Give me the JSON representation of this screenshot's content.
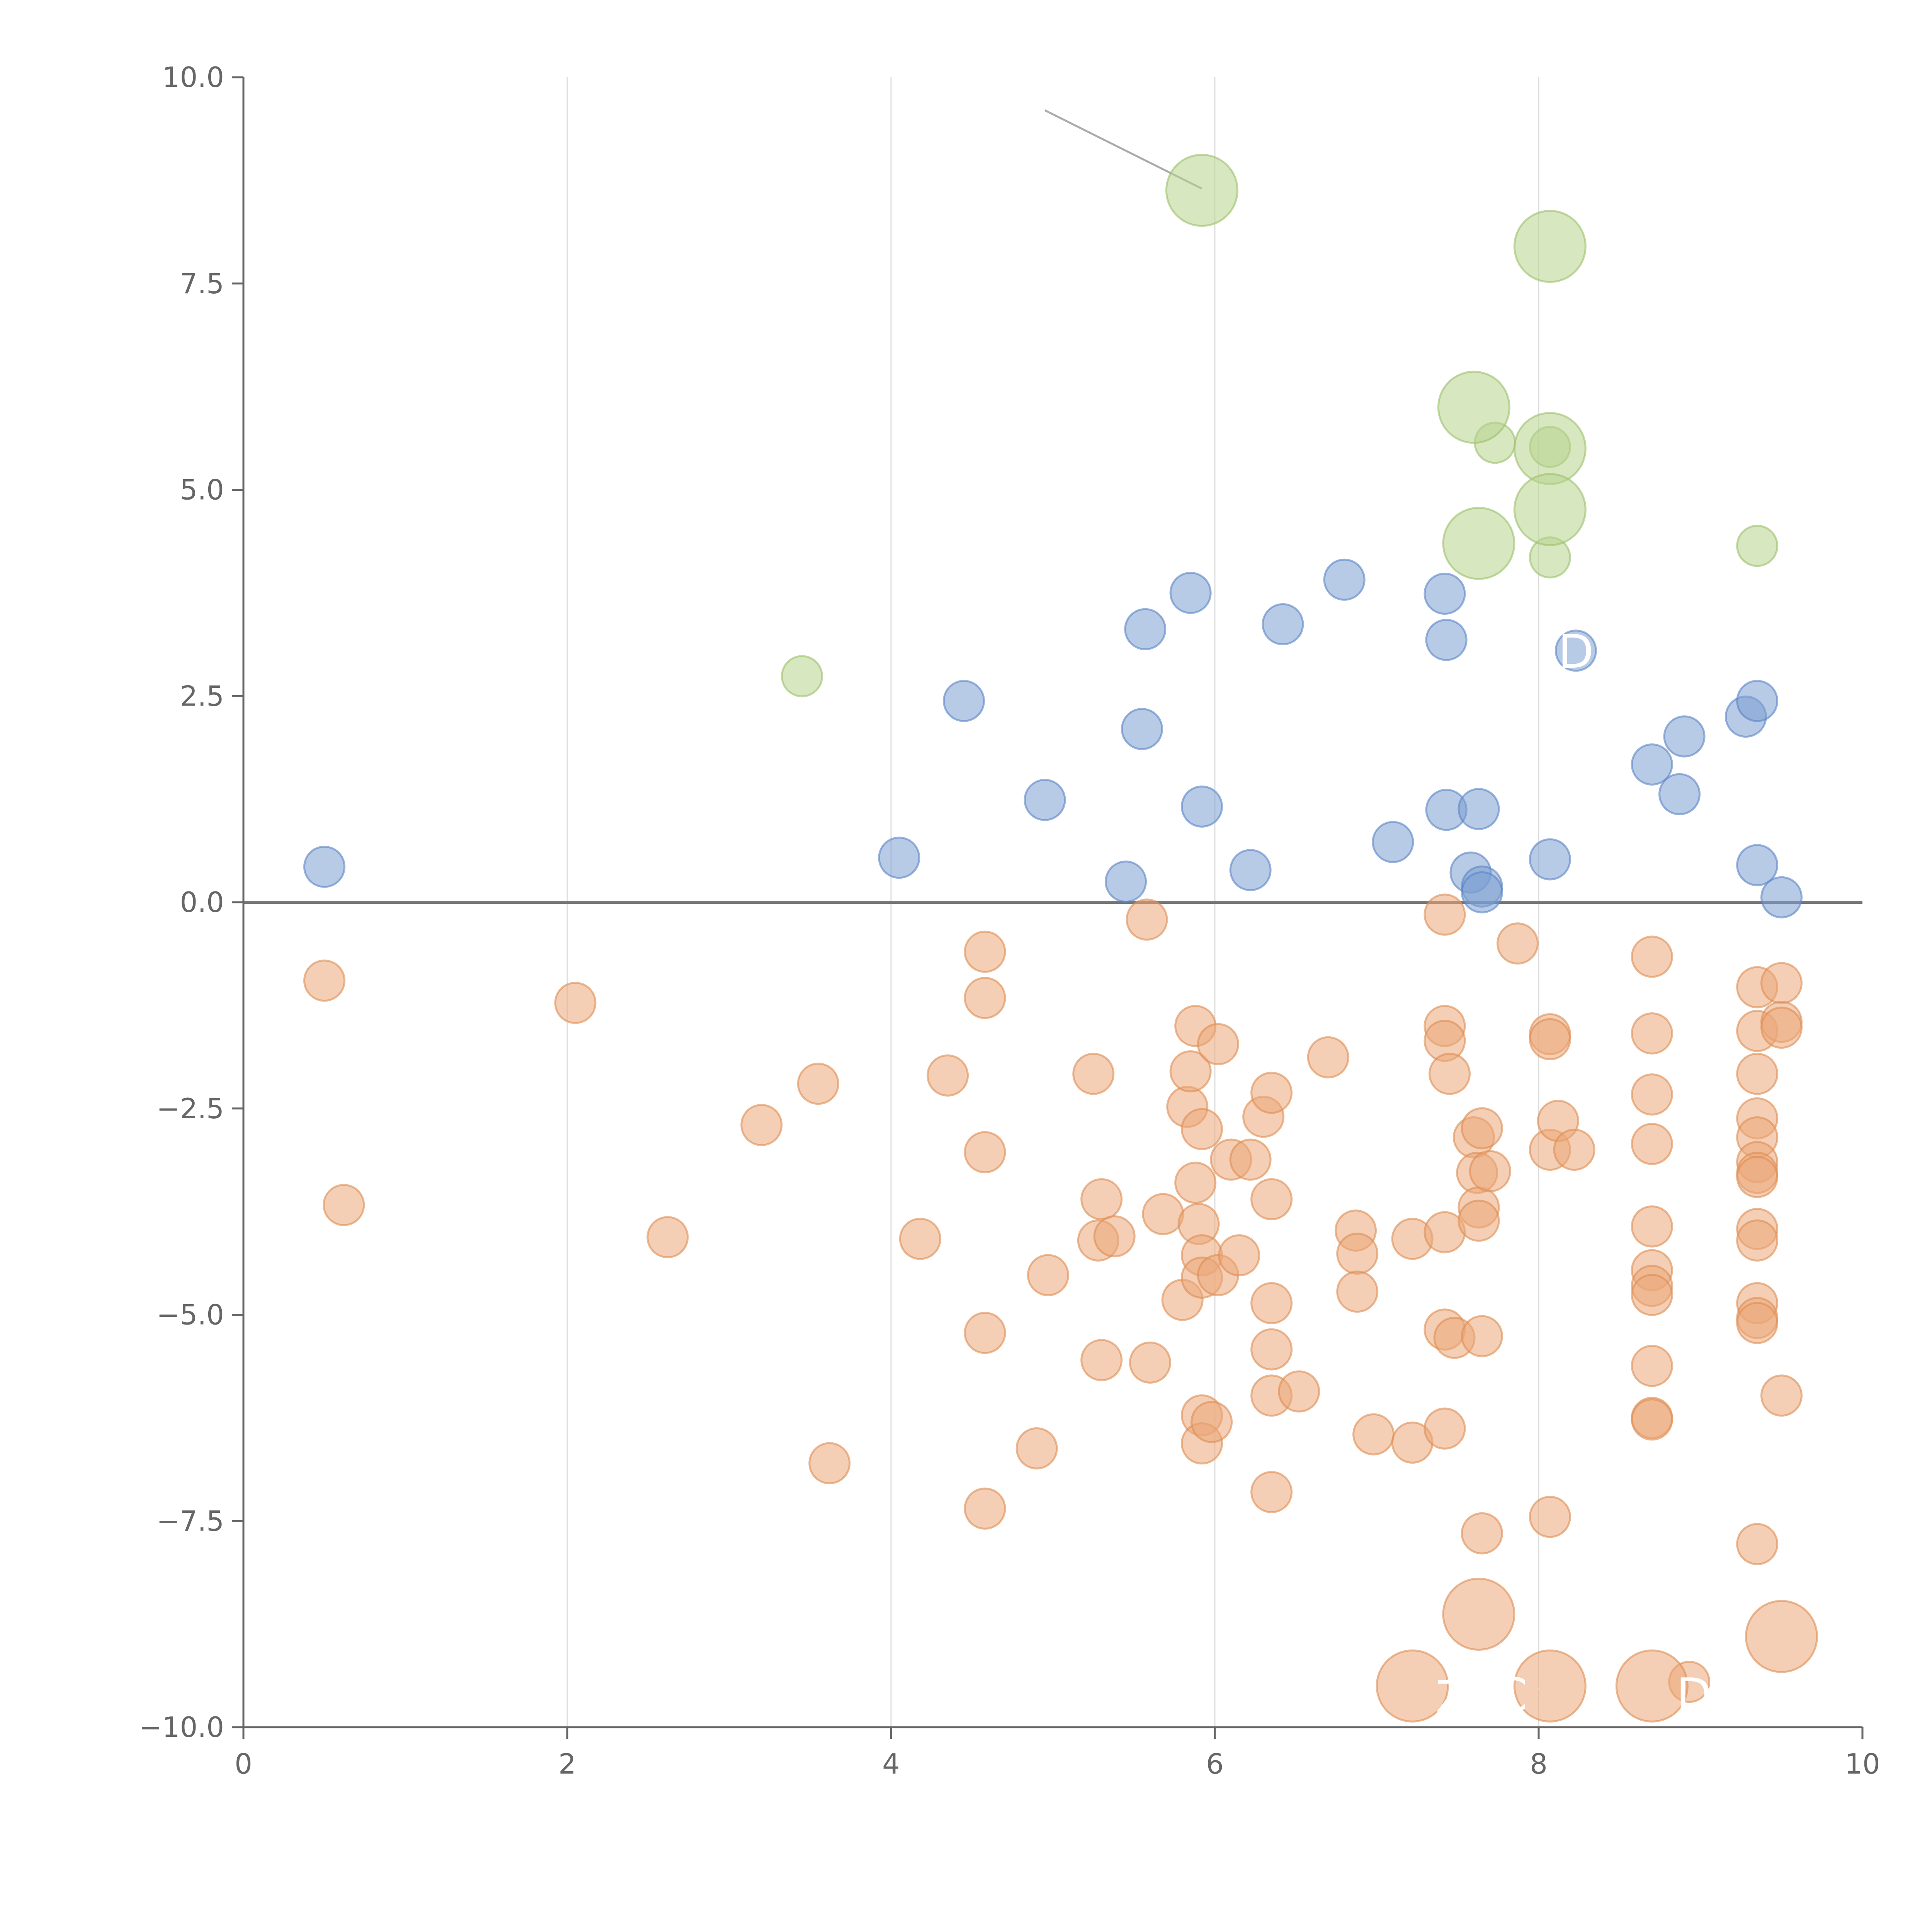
{
  "chart_data": {
    "type": "scatter",
    "title": "",
    "xlabel": "",
    "ylabel": "",
    "xlim": [
      0,
      10
    ],
    "ylim": [
      -10,
      10
    ],
    "x_ticks": [
      0,
      2,
      4,
      6,
      8,
      10
    ],
    "x_tick_labels": [
      "0",
      "2",
      "4",
      "6",
      "8",
      "10"
    ],
    "y_ticks": [
      -10,
      -7.5,
      -5,
      -2.5,
      0,
      2.5,
      5,
      7.5,
      10
    ],
    "y_tick_labels": [
      "−10.0",
      "−7.5",
      "−5.0",
      "−2.5",
      "0.0",
      "2.5",
      "5.0",
      "7.5",
      "10.0"
    ],
    "vertical_gridlines": [
      2,
      4,
      6,
      8
    ],
    "reference_line_y": 0,
    "colors": {
      "blue": "#7b9fd2",
      "blue_stroke": "#5a84c6",
      "orange": "#eba878",
      "orange_stroke": "#de8c52",
      "green": "#b7d38c",
      "green_stroke": "#9cc06a",
      "axis": "#666666",
      "grid": "#dddddd",
      "zero_line": "#777777",
      "leader": "#aaaaaa"
    },
    "series": [
      {
        "name": "blue",
        "color": "blue",
        "points": [
          [
            0.5,
            0.43
          ],
          [
            4.05,
            0.54
          ],
          [
            4.45,
            2.44
          ],
          [
            4.95,
            1.24
          ],
          [
            5.45,
            0.25
          ],
          [
            5.55,
            2.1
          ],
          [
            5.57,
            3.31
          ],
          [
            5.85,
            3.75
          ],
          [
            5.92,
            1.16
          ],
          [
            6.22,
            0.39
          ],
          [
            6.42,
            3.37
          ],
          [
            6.8,
            3.91
          ],
          [
            7.1,
            0.73
          ],
          [
            7.42,
            3.74
          ],
          [
            7.43,
            3.18
          ],
          [
            7.43,
            1.12
          ],
          [
            7.58,
            0.36
          ],
          [
            7.63,
            1.13
          ],
          [
            7.65,
            0.19
          ],
          [
            7.65,
            0.12
          ],
          [
            8.07,
            0.52
          ],
          [
            8.23,
            3.05
          ],
          [
            8.7,
            1.67
          ],
          [
            8.87,
            1.31
          ],
          [
            8.9,
            2.01
          ],
          [
            9.28,
            2.25
          ],
          [
            9.35,
            2.44
          ],
          [
            9.35,
            0.45
          ],
          [
            9.5,
            0.06
          ]
        ]
      },
      {
        "name": "orange",
        "color": "orange",
        "points": [
          [
            0.5,
            -0.95
          ],
          [
            0.62,
            -3.67
          ],
          [
            2.05,
            -1.22
          ],
          [
            2.62,
            -4.06
          ],
          [
            3.2,
            -2.7
          ],
          [
            3.55,
            -2.2
          ],
          [
            3.62,
            -6.8
          ],
          [
            4.18,
            -4.08
          ],
          [
            4.35,
            -2.1
          ],
          [
            4.58,
            -0.6
          ],
          [
            4.58,
            -1.16
          ],
          [
            4.58,
            -3.03
          ],
          [
            4.58,
            -5.22
          ],
          [
            4.58,
            -7.35
          ],
          [
            4.9,
            -6.62
          ],
          [
            4.97,
            -4.52
          ],
          [
            5.25,
            -2.08
          ],
          [
            5.28,
            -4.1
          ],
          [
            5.3,
            -3.6
          ],
          [
            5.3,
            -5.55
          ],
          [
            5.38,
            -4.05
          ],
          [
            5.58,
            -0.21
          ],
          [
            5.6,
            -5.58
          ],
          [
            5.68,
            -3.78
          ],
          [
            5.8,
            -4.82
          ],
          [
            5.83,
            -2.48
          ],
          [
            5.85,
            -2.05
          ],
          [
            5.88,
            -1.5
          ],
          [
            5.88,
            -3.4
          ],
          [
            5.9,
            -3.9
          ],
          [
            5.92,
            -2.75
          ],
          [
            5.92,
            -4.28
          ],
          [
            5.92,
            -4.55
          ],
          [
            5.92,
            -6.22
          ],
          [
            5.92,
            -6.56
          ],
          [
            5.98,
            -6.3
          ],
          [
            6.02,
            -1.72
          ],
          [
            6.02,
            -4.52
          ],
          [
            6.1,
            -3.12
          ],
          [
            6.15,
            -4.28
          ],
          [
            6.22,
            -3.12
          ],
          [
            6.3,
            -2.6
          ],
          [
            6.35,
            -2.31
          ],
          [
            6.35,
            -3.6
          ],
          [
            6.35,
            -4.86
          ],
          [
            6.35,
            -5.42
          ],
          [
            6.35,
            -5.98
          ],
          [
            6.35,
            -7.15
          ],
          [
            6.52,
            -5.93
          ],
          [
            6.7,
            -1.88
          ],
          [
            6.87,
            -3.98
          ],
          [
            6.88,
            -4.26
          ],
          [
            6.88,
            -4.72
          ],
          [
            6.98,
            -6.45
          ],
          [
            7.22,
            -4.08
          ],
          [
            7.22,
            -6.55
          ],
          [
            7.42,
            -0.15
          ],
          [
            7.42,
            -1.5
          ],
          [
            7.42,
            -1.68
          ],
          [
            7.42,
            -4.0
          ],
          [
            7.42,
            -5.18
          ],
          [
            7.42,
            -6.38
          ],
          [
            7.45,
            -2.08
          ],
          [
            7.48,
            -5.28
          ],
          [
            7.6,
            -2.85
          ],
          [
            7.62,
            -3.28
          ],
          [
            7.63,
            -3.7
          ],
          [
            7.63,
            -3.86
          ],
          [
            7.65,
            -2.74
          ],
          [
            7.65,
            -5.26
          ],
          [
            7.65,
            -7.65
          ],
          [
            7.7,
            -3.26
          ],
          [
            7.87,
            -0.5
          ],
          [
            8.07,
            -1.6
          ],
          [
            8.07,
            -1.66
          ],
          [
            8.07,
            -3.0
          ],
          [
            8.07,
            -7.45
          ],
          [
            8.12,
            -2.65
          ],
          [
            8.22,
            -3.0
          ],
          [
            8.7,
            -0.66
          ],
          [
            8.7,
            -1.59
          ],
          [
            8.7,
            -2.33
          ],
          [
            8.7,
            -2.93
          ],
          [
            8.7,
            -3.93
          ],
          [
            8.7,
            -4.46
          ],
          [
            8.7,
            -4.65
          ],
          [
            8.7,
            -4.76
          ],
          [
            8.7,
            -5.62
          ],
          [
            8.7,
            -6.25
          ],
          [
            8.7,
            -6.27
          ],
          [
            8.93,
            -9.45
          ],
          [
            9.35,
            -1.03
          ],
          [
            9.35,
            -1.56
          ],
          [
            9.35,
            -2.08
          ],
          [
            9.35,
            -2.62
          ],
          [
            9.35,
            -2.85
          ],
          [
            9.35,
            -3.15
          ],
          [
            9.35,
            -3.28
          ],
          [
            9.35,
            -3.33
          ],
          [
            9.35,
            -3.96
          ],
          [
            9.35,
            -4.1
          ],
          [
            9.35,
            -4.86
          ],
          [
            9.35,
            -5.04
          ],
          [
            9.35,
            -5.1
          ],
          [
            9.35,
            -7.78
          ],
          [
            9.5,
            -0.98
          ],
          [
            9.5,
            -1.45
          ],
          [
            9.5,
            -1.52
          ],
          [
            9.5,
            -5.98
          ]
        ]
      },
      {
        "name": "green",
        "color": "green",
        "points": [
          [
            3.45,
            2.74
          ],
          [
            7.73,
            5.57
          ],
          [
            8.07,
            4.18
          ],
          [
            8.07,
            5.52
          ],
          [
            9.35,
            4.32
          ]
        ]
      }
    ],
    "highlights": [
      {
        "series": "green",
        "x": 5.92,
        "y": 8.63,
        "size": "large"
      },
      {
        "series": "green",
        "x": 8.07,
        "y": 7.95,
        "size": "large"
      },
      {
        "series": "green",
        "x": 7.6,
        "y": 6.0,
        "size": "large"
      },
      {
        "series": "green",
        "x": 8.07,
        "y": 5.5,
        "size": "large"
      },
      {
        "series": "green",
        "x": 8.07,
        "y": 4.76,
        "size": "large"
      },
      {
        "series": "green",
        "x": 7.63,
        "y": 4.35,
        "size": "large"
      },
      {
        "series": "orange",
        "x": 7.63,
        "y": -8.63,
        "size": "large"
      },
      {
        "series": "orange",
        "x": 9.5,
        "y": -8.9,
        "size": "large"
      },
      {
        "series": "orange",
        "x": 7.22,
        "y": -9.5,
        "size": "large"
      },
      {
        "series": "orange",
        "x": 8.07,
        "y": -9.5,
        "size": "large"
      },
      {
        "series": "orange",
        "x": 8.7,
        "y": -9.5,
        "size": "large"
      }
    ],
    "leader_lines": [
      {
        "from": [
          4.95,
          9.6
        ],
        "to": [
          5.92,
          8.65
        ],
        "color": "leader"
      },
      {
        "from": [
          7.65,
          6.03
        ],
        "to": [
          7.57,
          6.22
        ],
        "color": "white"
      },
      {
        "from": [
          8.1,
          5.55
        ],
        "to": [
          8.3,
          5.6
        ],
        "color": "white"
      },
      {
        "from": [
          8.1,
          4.72
        ],
        "to": [
          8.18,
          4.42
        ],
        "color": "white"
      },
      {
        "from": [
          7.63,
          4.4
        ],
        "to": [
          7.4,
          3.65
        ],
        "color": "white"
      },
      {
        "from": [
          7.63,
          -8.6
        ],
        "to": [
          7.68,
          -8.15
        ],
        "color": "white"
      },
      {
        "from": [
          9.5,
          -8.9
        ],
        "to": [
          9.48,
          -8.4
        ],
        "color": "white"
      },
      {
        "from": [
          7.2,
          -9.5
        ],
        "to": [
          7.0,
          -9.35
        ],
        "color": "white"
      },
      {
        "from": [
          8.07,
          -9.5
        ],
        "to": [
          7.85,
          -9.6
        ],
        "color": "white"
      }
    ],
    "point_labels": [
      {
        "text": "D",
        "x": 8.23,
        "y": 3.03,
        "color": "white"
      },
      {
        "text": "Z",
        "x": 7.46,
        "y": -9.65,
        "color": "white"
      },
      {
        "text": "C",
        "x": 7.83,
        "y": -9.62,
        "color": "white"
      },
      {
        "text": "D",
        "x": 8.96,
        "y": -9.62,
        "color": "white"
      }
    ]
  }
}
